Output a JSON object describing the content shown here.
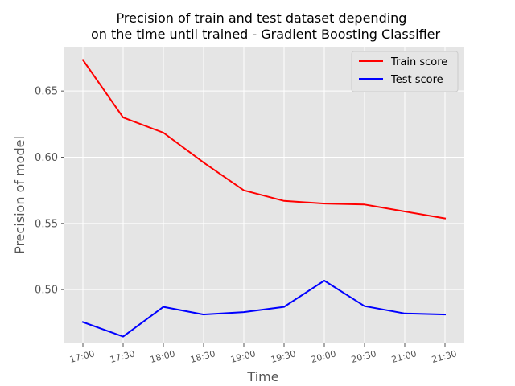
{
  "chart_data": {
    "type": "line",
    "title_lines": [
      "Precision of train and test dataset depending",
      "on the time until trained - Gradient Boosting Classifier"
    ],
    "xlabel": "Time",
    "ylabel": "Precision of model",
    "categories": [
      "17:00",
      "17:30",
      "18:00",
      "18:30",
      "19:00",
      "19:30",
      "20:00",
      "20:30",
      "21:00",
      "21:30"
    ],
    "ylim": [
      0.4594,
      0.6835
    ],
    "yticks": [
      0.5,
      0.55,
      0.6,
      0.65
    ],
    "ytick_labels": [
      "0.50",
      "0.55",
      "0.60",
      "0.65"
    ],
    "grid": true,
    "legend_position": "top-right",
    "series": [
      {
        "name": "Train score",
        "color": "#ff0000",
        "values": [
          0.6735,
          0.63,
          0.6185,
          0.596,
          0.575,
          0.567,
          0.565,
          0.5643,
          0.559,
          0.5538
        ]
      },
      {
        "name": "Test score",
        "color": "#0000ff",
        "values": [
          0.4755,
          0.4645,
          0.487,
          0.4812,
          0.483,
          0.487,
          0.5068,
          0.4875,
          0.482,
          0.4812
        ]
      }
    ],
    "colors": {
      "plot_background": "#e5e5e5",
      "grid": "#ffffff",
      "tick_text": "#555555"
    }
  }
}
